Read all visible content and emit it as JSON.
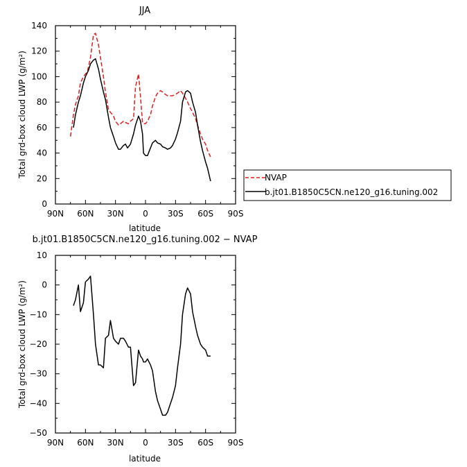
{
  "chart_data": [
    {
      "type": "line",
      "title": "JJA",
      "xlabel": "latitude",
      "ylabel": "Total grd-box cloud LWP (g/m²)",
      "xlim": [
        90,
        -90
      ],
      "ylim": [
        0,
        140
      ],
      "x_tick_values": [
        90,
        60,
        30,
        0,
        -30,
        -60,
        -90
      ],
      "x_tick_labels": [
        "90N",
        "60N",
        "30N",
        "0",
        "30S",
        "60S",
        "90S"
      ],
      "y_tick_values": [
        0,
        20,
        40,
        60,
        80,
        100,
        120,
        140
      ],
      "y_tick_labels": [
        "0",
        "20",
        "40",
        "60",
        "80",
        "100",
        "120",
        "140"
      ],
      "grid": false,
      "legend_placement": "right, outside plot",
      "series": [
        {
          "name": "NVAP",
          "color": "#e01e1e",
          "dash": "dashed",
          "x": [
            75,
            72,
            70,
            67,
            65,
            62,
            58,
            55,
            52,
            50,
            47,
            45,
            42,
            40,
            37,
            35,
            32,
            30,
            27,
            25,
            22,
            20,
            17,
            15,
            12,
            10,
            7,
            5,
            3,
            2,
            0,
            -2,
            -5,
            -7,
            -10,
            -12,
            -15,
            -17,
            -20,
            -22,
            -25,
            -27,
            -30,
            -32,
            -35,
            -37,
            -40,
            -42,
            -45,
            -47,
            -50,
            -52,
            -55,
            -57,
            -60,
            -62,
            -65
          ],
          "y": [
            53,
            70,
            78,
            85,
            95,
            100,
            104,
            115,
            133,
            134,
            125,
            115,
            100,
            88,
            74,
            72,
            69,
            65,
            62,
            63,
            65,
            64,
            63,
            65,
            67,
            92,
            102,
            84,
            64,
            63,
            63,
            65,
            70,
            77,
            84,
            87,
            89,
            88,
            86,
            85,
            85,
            85,
            86,
            87,
            89,
            87,
            83,
            80,
            75,
            72,
            67,
            62,
            55,
            51,
            47,
            42,
            37
          ]
        },
        {
          "name": "b.jt01.B1850C5CN.ne120_g16.tuning.002",
          "color": "#000000",
          "dash": "solid",
          "x": [
            72,
            70,
            67,
            65,
            62,
            60,
            57,
            55,
            52,
            50,
            47,
            45,
            42,
            40,
            37,
            35,
            32,
            30,
            27,
            25,
            22,
            20,
            18,
            15,
            12,
            10,
            7,
            5,
            3,
            2,
            0,
            -2,
            -5,
            -7,
            -10,
            -12,
            -15,
            -17,
            -20,
            -22,
            -25,
            -27,
            -30,
            -32,
            -35,
            -37,
            -40,
            -42,
            -45,
            -47,
            -50,
            -52,
            -55,
            -57,
            -60,
            -62,
            -65
          ],
          "y": [
            60,
            70,
            80,
            85,
            95,
            100,
            105,
            110,
            113,
            114,
            106,
            98,
            88,
            82,
            68,
            60,
            53,
            48,
            43,
            43,
            46,
            47,
            44,
            47,
            55,
            62,
            69,
            65,
            55,
            40,
            38,
            38,
            44,
            48,
            50,
            48,
            47,
            45,
            44,
            43,
            44,
            46,
            51,
            56,
            65,
            80,
            88,
            89,
            87,
            80,
            72,
            62,
            49,
            42,
            33,
            28,
            18
          ]
        }
      ]
    },
    {
      "type": "line",
      "title": "b.jt01.B1850C5CN.ne120_g16.tuning.002 − NVAP",
      "xlabel": "latitude",
      "ylabel": "Total grd-box cloud LWP (g/m²)",
      "xlim": [
        90,
        -90
      ],
      "ylim": [
        -50,
        10
      ],
      "x_tick_values": [
        90,
        60,
        30,
        0,
        -30,
        -60,
        -90
      ],
      "x_tick_labels": [
        "90N",
        "60N",
        "30N",
        "0",
        "30S",
        "60S",
        "90S"
      ],
      "y_tick_values": [
        -50,
        -40,
        -30,
        -20,
        -10,
        0,
        10
      ],
      "y_tick_labels": [
        "−50",
        "−40",
        "−30",
        "−20",
        "−10",
        "0",
        "10"
      ],
      "grid": false,
      "series": [
        {
          "color": "#000000",
          "x": [
            72,
            70,
            67,
            65,
            62,
            60,
            57,
            55,
            52,
            50,
            47,
            45,
            42,
            40,
            37,
            35,
            32,
            30,
            27,
            25,
            22,
            20,
            17,
            15,
            12,
            10,
            7,
            5,
            3,
            2,
            0,
            -2,
            -5,
            -7,
            -10,
            -12,
            -15,
            -17,
            -20,
            -22,
            -25,
            -27,
            -30,
            -32,
            -35,
            -37,
            -40,
            -42,
            -45,
            -47,
            -50,
            -52,
            -55,
            -57,
            -60,
            -62,
            -65
          ],
          "y": [
            -7,
            -5,
            0,
            -9,
            -6,
            1,
            2,
            3,
            -10,
            -20,
            -27,
            -27,
            -28,
            -18,
            -17,
            -12,
            -18,
            -19,
            -20,
            -18,
            -18,
            -19,
            -21,
            -21,
            -34,
            -33,
            -22,
            -24,
            -25,
            -26,
            -26,
            -25,
            -27,
            -29,
            -36,
            -39,
            -42,
            -44,
            -44,
            -43,
            -40,
            -38,
            -34,
            -28,
            -20,
            -10,
            -3,
            -1,
            -3,
            -9,
            -14,
            -17,
            -20,
            -21,
            -22,
            -24,
            -24
          ]
        }
      ]
    }
  ]
}
